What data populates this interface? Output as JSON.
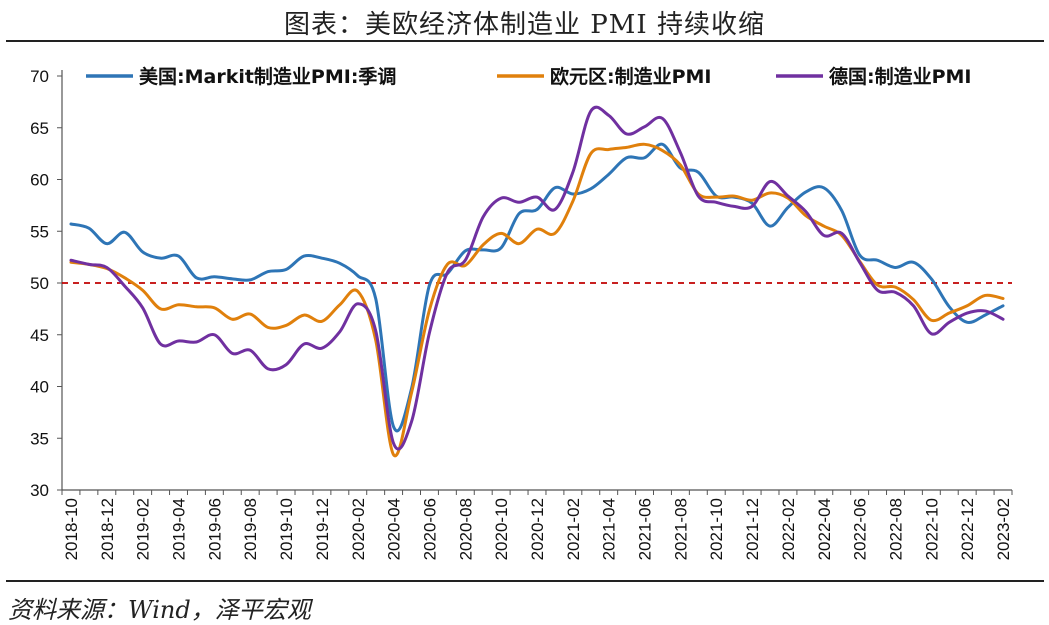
{
  "page": {
    "title": "图表：美欧经济体制造业 PMI 持续收缩",
    "source": "资料来源：Wind，泽平宏观"
  },
  "chart_data": {
    "type": "line",
    "title": "图表：美欧经济体制造业 PMI 持续收缩",
    "xlabel": "",
    "ylabel": "",
    "ylim": [
      30,
      70
    ],
    "yticks": [
      30,
      35,
      40,
      45,
      50,
      55,
      60,
      65,
      70
    ],
    "grid": false,
    "legend_position": "top",
    "reference_line": {
      "value": 50,
      "color": "#c00000",
      "style": "dashed"
    },
    "x": [
      "2018-10",
      "2018-11",
      "2018-12",
      "2019-01",
      "2019-02",
      "2019-03",
      "2019-04",
      "2019-05",
      "2019-06",
      "2019-07",
      "2019-08",
      "2019-09",
      "2019-10",
      "2019-11",
      "2019-12",
      "2020-01",
      "2020-02",
      "2020-03",
      "2020-04",
      "2020-05",
      "2020-06",
      "2020-07",
      "2020-08",
      "2020-09",
      "2020-10",
      "2020-11",
      "2020-12",
      "2021-01",
      "2021-02",
      "2021-03",
      "2021-04",
      "2021-05",
      "2021-06",
      "2021-07",
      "2021-08",
      "2021-09",
      "2021-10",
      "2021-11",
      "2021-12",
      "2022-01",
      "2022-02",
      "2022-03",
      "2022-04",
      "2022-05",
      "2022-06",
      "2022-07",
      "2022-08",
      "2022-09",
      "2022-10",
      "2022-11",
      "2022-12",
      "2023-01",
      "2023-02"
    ],
    "xtick_labels": [
      "2018-10",
      "2018-12",
      "2019-02",
      "2019-04",
      "2019-06",
      "2019-08",
      "2019-10",
      "2019-12",
      "2020-02",
      "2020-04",
      "2020-06",
      "2020-08",
      "2020-10",
      "2020-12",
      "2021-02",
      "2021-04",
      "2021-06",
      "2021-08",
      "2021-10",
      "2021-12",
      "2022-02",
      "2022-04",
      "2022-06",
      "2022-08",
      "2022-10",
      "2022-12",
      "2023-02"
    ],
    "series": [
      {
        "name": "美国:Markit制造业PMI:季调",
        "color": "#2e75b6",
        "values": [
          55.7,
          55.3,
          53.8,
          54.9,
          53.0,
          52.4,
          52.6,
          50.5,
          50.6,
          50.4,
          50.3,
          51.1,
          51.3,
          52.6,
          52.4,
          51.9,
          50.7,
          48.5,
          36.1,
          39.8,
          49.8,
          50.9,
          53.1,
          53.2,
          53.4,
          56.7,
          57.1,
          59.2,
          58.6,
          59.1,
          60.5,
          62.1,
          62.1,
          63.4,
          61.1,
          60.7,
          58.4,
          58.3,
          57.7,
          55.5,
          57.3,
          58.8,
          59.2,
          57.0,
          52.7,
          52.2,
          51.5,
          52.0,
          50.4,
          47.7,
          46.2,
          46.9,
          47.8
        ]
      },
      {
        "name": "欧元区:制造业PMI",
        "color": "#e0800c",
        "values": [
          52.0,
          51.8,
          51.4,
          50.5,
          49.3,
          47.5,
          47.9,
          47.7,
          47.6,
          46.5,
          47.0,
          45.7,
          45.9,
          46.9,
          46.3,
          47.9,
          49.2,
          44.5,
          33.4,
          39.4,
          47.4,
          51.8,
          51.7,
          53.7,
          54.8,
          53.8,
          55.2,
          54.8,
          57.9,
          62.5,
          62.9,
          63.1,
          63.4,
          62.8,
          61.4,
          58.6,
          58.3,
          58.4,
          58.0,
          58.7,
          58.2,
          56.5,
          55.5,
          54.6,
          52.1,
          49.8,
          49.6,
          48.4,
          46.4,
          47.1,
          47.8,
          48.8,
          48.5
        ]
      },
      {
        "name": "德国:制造业PMI",
        "color": "#7030a0",
        "values": [
          52.2,
          51.8,
          51.5,
          49.7,
          47.6,
          44.1,
          44.4,
          44.3,
          45.0,
          43.2,
          43.5,
          41.7,
          42.1,
          44.1,
          43.7,
          45.3,
          48.0,
          45.4,
          34.5,
          36.6,
          45.2,
          51.0,
          52.2,
          56.4,
          58.2,
          57.8,
          58.3,
          57.1,
          60.7,
          66.6,
          66.2,
          64.4,
          65.1,
          65.9,
          62.6,
          58.4,
          57.8,
          57.4,
          57.4,
          59.8,
          58.4,
          56.9,
          54.6,
          54.8,
          52.0,
          49.3,
          49.1,
          47.8,
          45.1,
          46.2,
          47.1,
          47.3,
          46.5
        ]
      }
    ]
  }
}
